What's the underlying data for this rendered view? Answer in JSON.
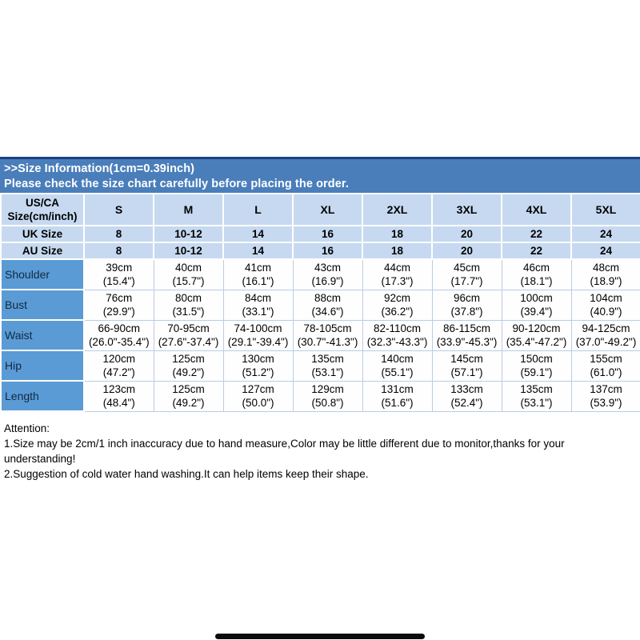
{
  "colors": {
    "banner_bg": "#4a7ebb",
    "banner_top_border": "#16437b",
    "banner_text": "#ffffff",
    "header_cell_bg": "#c6d9f0",
    "label_column_bg": "#5b9bd5",
    "data_cell_bg": "#fefefe",
    "grid_line": "#b9cde4",
    "body_text": "#000000"
  },
  "banner": {
    "line1": ">>Size Information(1cm=0.39inch)",
    "line2": "Please check the size chart carefully before placing the order."
  },
  "table": {
    "header": {
      "corner_line1": "US/CA",
      "corner_line2": "Size(cm/inch)",
      "sizes": [
        "S",
        "M",
        "L",
        "XL",
        "2XL",
        "3XL",
        "4XL",
        "5XL"
      ]
    },
    "size_rows": [
      {
        "label": "UK Size",
        "values": [
          "8",
          "10-12",
          "14",
          "16",
          "18",
          "20",
          "22",
          "24"
        ]
      },
      {
        "label": "AU Size",
        "values": [
          "8",
          "10-12",
          "14",
          "16",
          "18",
          "20",
          "22",
          "24"
        ]
      }
    ],
    "measure_rows": [
      {
        "label": "Shoulder",
        "cm": [
          "39cm",
          "40cm",
          "41cm",
          "43cm",
          "44cm",
          "45cm",
          "46cm",
          "48cm"
        ],
        "inch": [
          "(15.4\")",
          "(15.7\")",
          "(16.1\")",
          "(16.9\")",
          "(17.3\")",
          "(17.7\")",
          "(18.1\")",
          "(18.9\")"
        ]
      },
      {
        "label": "Bust",
        "cm": [
          "76cm",
          "80cm",
          "84cm",
          "88cm",
          "92cm",
          "96cm",
          "100cm",
          "104cm"
        ],
        "inch": [
          "(29.9\")",
          "(31.5\")",
          "(33.1\")",
          "(34.6\")",
          "(36.2\")",
          "(37.8\")",
          "(39.4\")",
          "(40.9\")"
        ]
      },
      {
        "label": "Waist",
        "cm": [
          "66-90cm",
          "70-95cm",
          "74-100cm",
          "78-105cm",
          "82-110cm",
          "86-115cm",
          "90-120cm",
          "94-125cm"
        ],
        "inch": [
          "(26.0\"-35.4\")",
          "(27.6\"-37.4\")",
          "(29.1\"-39.4\")",
          "(30.7\"-41.3\")",
          "(32.3\"-43.3\")",
          "(33.9\"-45.3\")",
          "(35.4\"-47.2\")",
          "(37.0\"-49.2\")"
        ]
      },
      {
        "label": "Hip",
        "cm": [
          "120cm",
          "125cm",
          "130cm",
          "135cm",
          "140cm",
          "145cm",
          "150cm",
          "155cm"
        ],
        "inch": [
          "(47.2\")",
          "(49.2\")",
          "(51.2\")",
          "(53.1\")",
          "(55.1\")",
          "(57.1\")",
          "(59.1\")",
          "(61.0\")"
        ]
      },
      {
        "label": "Length",
        "cm": [
          "123cm",
          "125cm",
          "127cm",
          "129cm",
          "131cm",
          "133cm",
          "135cm",
          "137cm"
        ],
        "inch": [
          "(48.4\")",
          "(49.2\")",
          "(50.0\")",
          "(50.8\")",
          "(51.6\")",
          "(52.4\")",
          "(53.1\")",
          "(53.9\")"
        ]
      }
    ]
  },
  "attention": {
    "title": "Attention:",
    "lines": [
      "1.Size may be 2cm/1 inch inaccuracy due to hand measure,Color may be little different due to monitor,thanks for your understanding!",
      "2.Suggestion of cold water hand washing.It can help items keep their shape."
    ]
  }
}
